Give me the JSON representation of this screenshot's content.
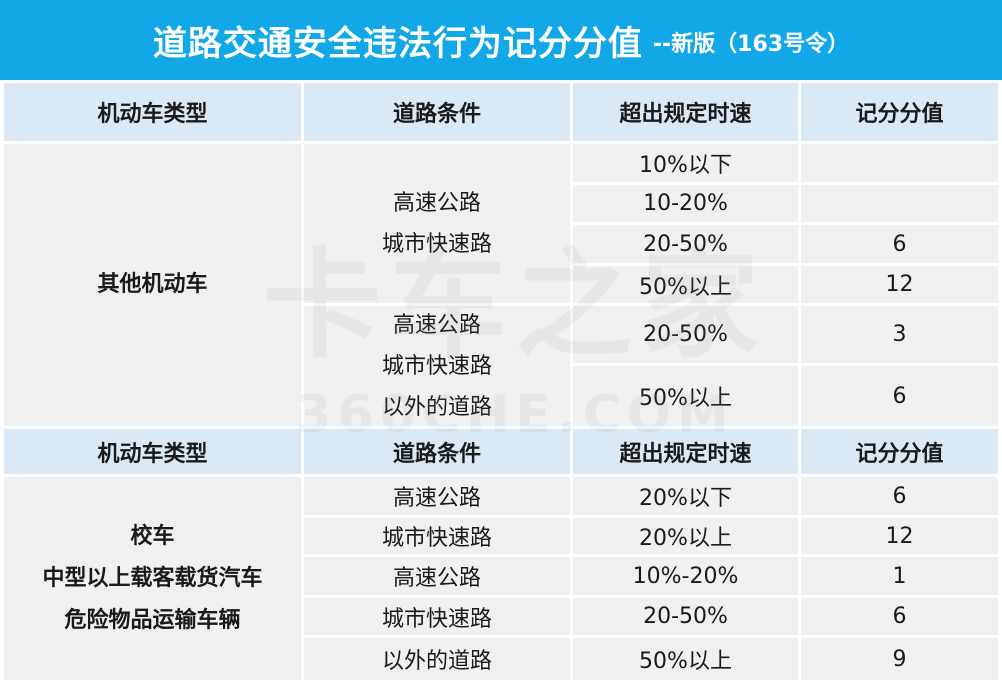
{
  "title": {
    "main": "道路交通安全违法行为记分分值",
    "sub": "--新版（163号令）"
  },
  "header": {
    "col1": "机动车类型",
    "col2": "道路条件",
    "col3": "超出规定时速",
    "col4": "记分分值"
  },
  "section1": {
    "vehicle": "其他机动车",
    "roads_a": [
      "高速公路",
      "城市快速路"
    ],
    "roads_b": [
      "高速公路",
      "城市快速路",
      "以外的道路"
    ],
    "rows": [
      {
        "speed": "10%以下",
        "points": ""
      },
      {
        "speed": "10-20%",
        "points": ""
      },
      {
        "speed": "20-50%",
        "points": "6"
      },
      {
        "speed": "50%以上",
        "points": "12"
      },
      {
        "speed": "20-50%",
        "points": "3"
      },
      {
        "speed": "50%以上",
        "points": "6"
      }
    ]
  },
  "section2": {
    "vehicles": [
      "校车",
      "中型以上载客载货汽车",
      "危险物品运输车辆"
    ],
    "rows": [
      {
        "road": "高速公路",
        "speed": "20%以下",
        "points": "6"
      },
      {
        "road": "城市快速路",
        "speed": "20%以上",
        "points": "12"
      },
      {
        "road": "高速公路",
        "speed": "10%-20%",
        "points": "1"
      },
      {
        "road": "城市快速路",
        "speed": "20-50%",
        "points": "6"
      },
      {
        "road": "以外的道路",
        "speed": "50%以上",
        "points": "9"
      }
    ]
  },
  "watermark": {
    "main": "卡车之家",
    "sub": "360CHE.COM"
  }
}
